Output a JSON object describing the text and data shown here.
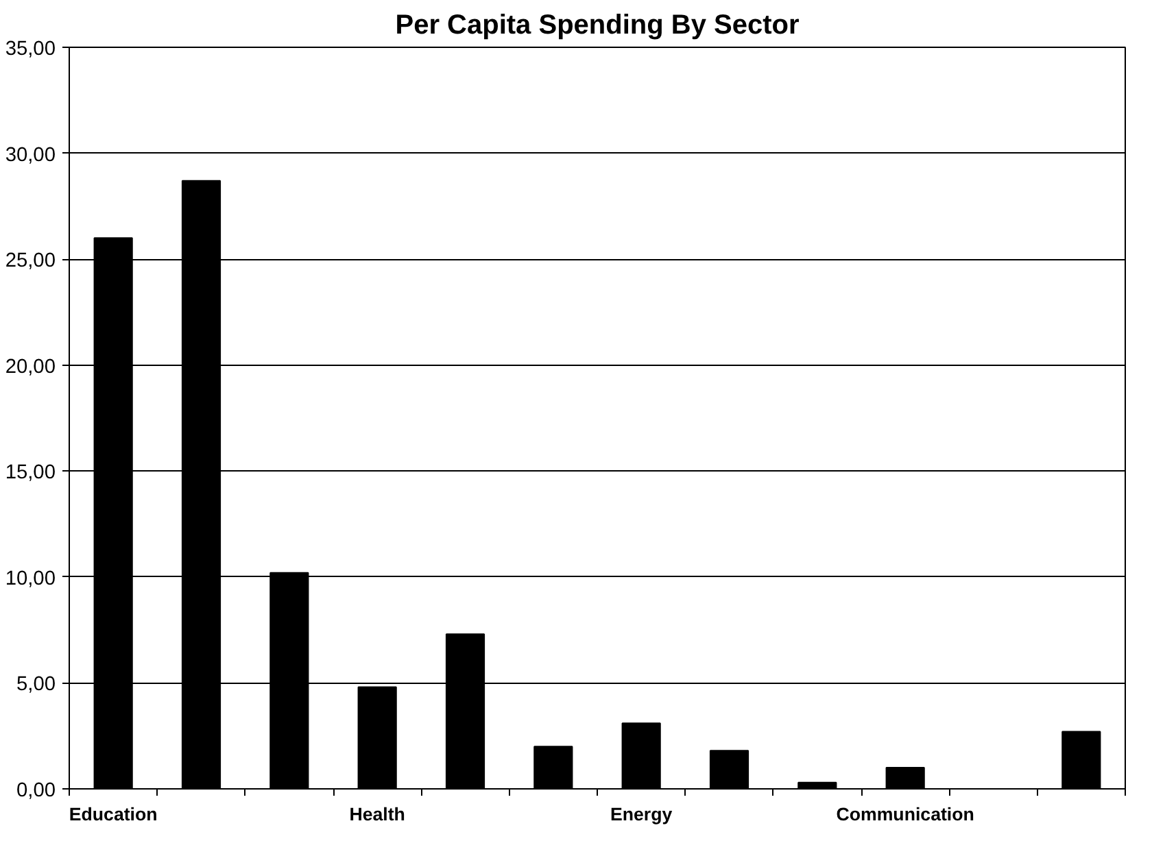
{
  "chart_data": {
    "type": "bar",
    "title": "Per Capita Spending By Sector",
    "categories": [
      "Education",
      null,
      null,
      "Health",
      null,
      null,
      "Energy",
      null,
      null,
      "Communication",
      null,
      null
    ],
    "values": [
      26.0,
      28.7,
      10.2,
      4.8,
      7.3,
      2.0,
      3.1,
      1.8,
      0.3,
      1.0,
      0,
      2.7
    ],
    "color": "#000000",
    "ylim": [
      0,
      35
    ],
    "yticks": [
      {
        "value": 0,
        "label": "0,00"
      },
      {
        "value": 5,
        "label": "5,00"
      },
      {
        "value": 10,
        "label": "10,00"
      },
      {
        "value": 15,
        "label": "15,00"
      },
      {
        "value": 20,
        "label": "20,00"
      },
      {
        "value": 25,
        "label": "25,00"
      },
      {
        "value": 30,
        "label": "30,00"
      },
      {
        "value": 35,
        "label": "35,00"
      }
    ],
    "grid": "y"
  }
}
